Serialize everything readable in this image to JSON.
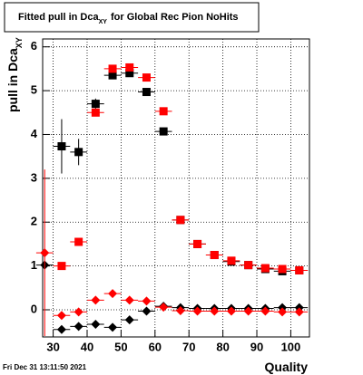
{
  "chart_data": {
    "type": "scatter",
    "title": [
      "Fitted pull in Dca",
      "XY",
      "for Global Rec Pion NoHits"
    ],
    "y_label": [
      "pull in Dca",
      "XY"
    ],
    "x_label": "Quality",
    "footer": "Fri Dec 31 13:11:50 2021",
    "x": [
      27.5,
      32.5,
      37.5,
      42.5,
      47.5,
      52.5,
      57.5,
      62.5,
      67.5,
      72.5,
      77.5,
      82.5,
      87.5,
      92.5,
      97.5,
      102.5
    ],
    "series": [
      {
        "marker": "square",
        "color": "#000000",
        "values": [
          null,
          3.73,
          3.6,
          4.7,
          5.35,
          5.4,
          4.97,
          4.07,
          2.05,
          1.5,
          1.25,
          1.1,
          1.02,
          0.93,
          0.88,
          0.9
        ],
        "errors": [
          null,
          0.62,
          0.3,
          0.12,
          0.08,
          0.07,
          0.06,
          0.07,
          0.04,
          0.04,
          0.03,
          0.03,
          0.02,
          0.02,
          0.02,
          0.02
        ]
      },
      {
        "marker": "square",
        "color": "#ff0000",
        "values": [
          null,
          1.0,
          1.55,
          4.5,
          5.5,
          5.53,
          5.3,
          4.53,
          2.05,
          1.5,
          1.25,
          1.12,
          1.02,
          0.95,
          0.93,
          0.9
        ]
      },
      {
        "marker": "diamond",
        "color": "#000000",
        "values": [
          1.02,
          -0.45,
          -0.38,
          -0.33,
          -0.4,
          -0.23,
          -0.03,
          0.08,
          0.05,
          0.03,
          0.03,
          0.03,
          0.03,
          0.03,
          0.05,
          0.05
        ]
      },
      {
        "marker": "diamond",
        "color": "#ff0000",
        "values": [
          1.3,
          -0.13,
          -0.05,
          0.22,
          0.37,
          0.22,
          0.2,
          0.06,
          -0.02,
          -0.03,
          -0.03,
          -0.03,
          -0.03,
          -0.03,
          -0.05,
          -0.05
        ],
        "errors": [
          1.9,
          0.05,
          0.05,
          0.05,
          0.04,
          0.04,
          0.04,
          0.03,
          0.03,
          0.03,
          0.03,
          0.03,
          0.03,
          0.03,
          0.03,
          0.03
        ]
      }
    ],
    "xlim": [
      26.9,
      105.5
    ],
    "ylim": [
      -0.62,
      6.18
    ],
    "xticks": [
      30,
      40,
      50,
      60,
      70,
      80,
      90,
      100
    ],
    "yticks": [
      0,
      1,
      2,
      3,
      4,
      5,
      6
    ],
    "grid": true
  }
}
